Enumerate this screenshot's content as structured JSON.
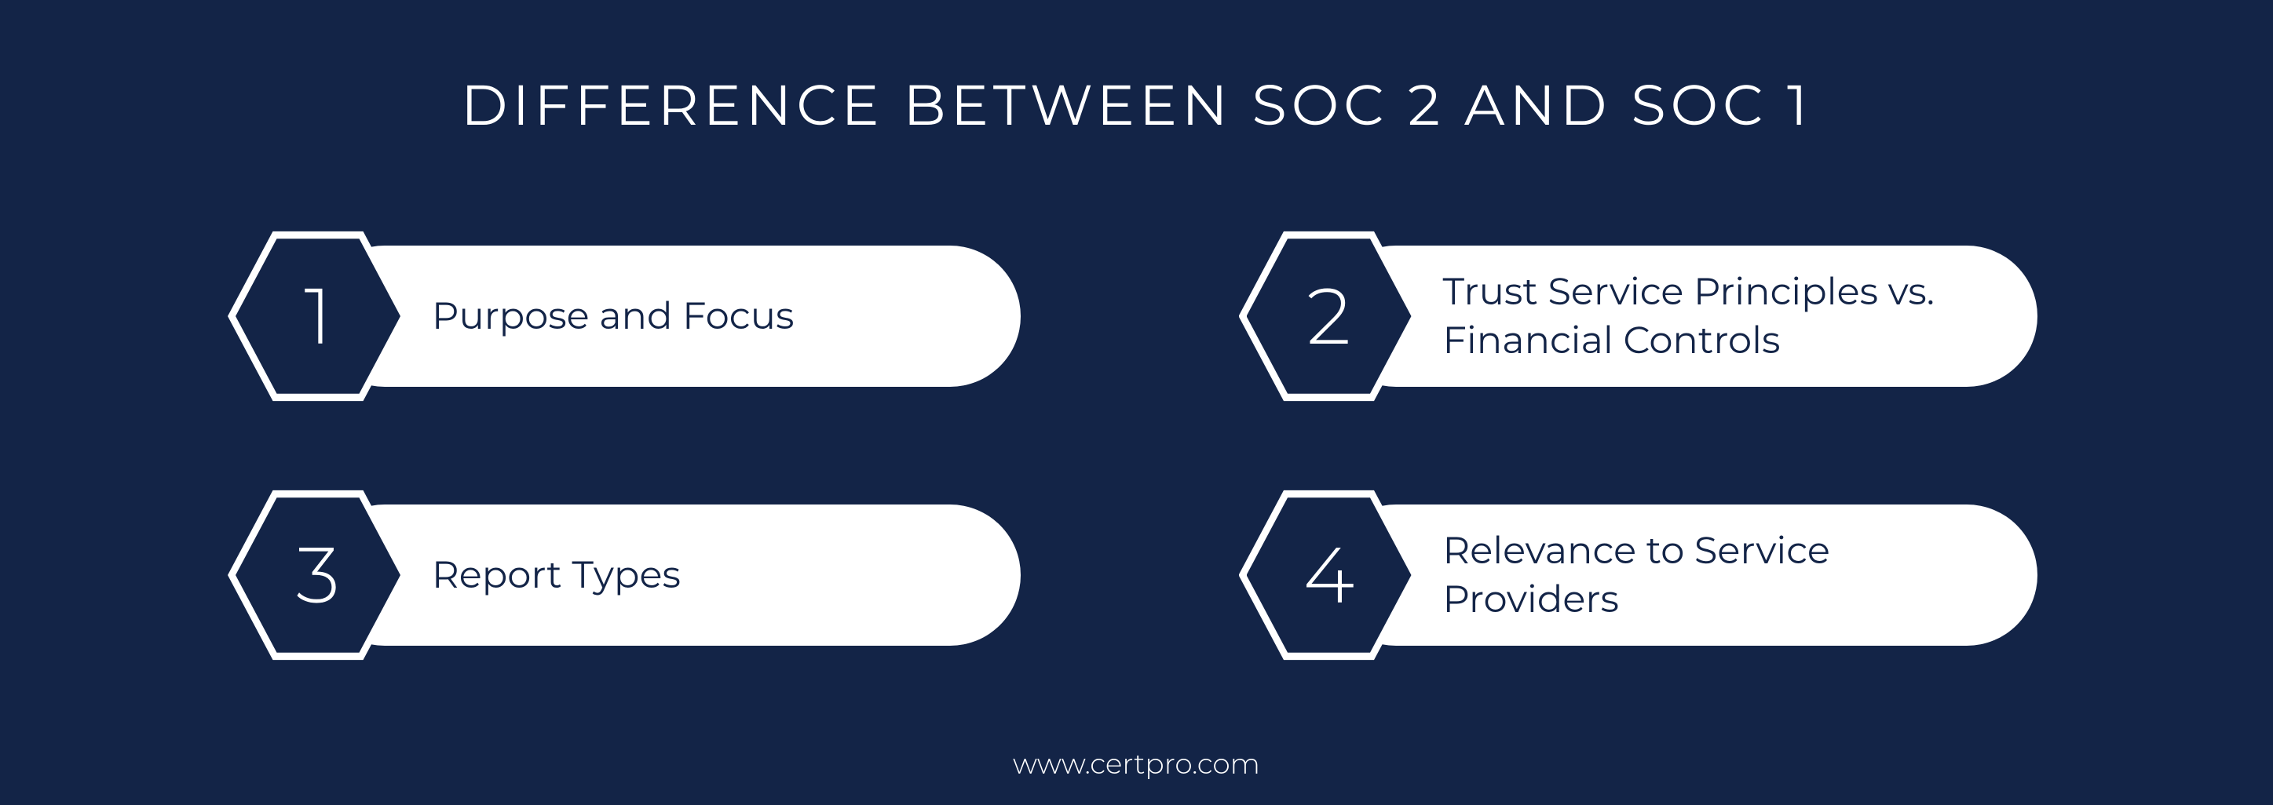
{
  "title": "DIFFERENCE BETWEEN SOC 2 AND SOC 1",
  "items": [
    {
      "number": "1",
      "label": "Purpose and Focus"
    },
    {
      "number": "2",
      "label": "Trust Service Principles vs. Financial Controls"
    },
    {
      "number": "3",
      "label": "Report Types"
    },
    {
      "number": "4",
      "label": "Relevance to Service Providers"
    }
  ],
  "footer": "www.certpro.com",
  "style": {
    "background_color": "#132447",
    "text_color": "#ffffff",
    "pill_background": "#ffffff",
    "pill_text_color": "#132447",
    "hexagon_fill": "#132447",
    "hexagon_border": "#ffffff",
    "title_fontsize": 72,
    "number_fontsize": 100,
    "label_fontsize": 48,
    "footer_fontsize": 36,
    "layout": "2x2-grid",
    "hexagon_size": 210,
    "pill_height": 180,
    "pill_radius": 90
  }
}
